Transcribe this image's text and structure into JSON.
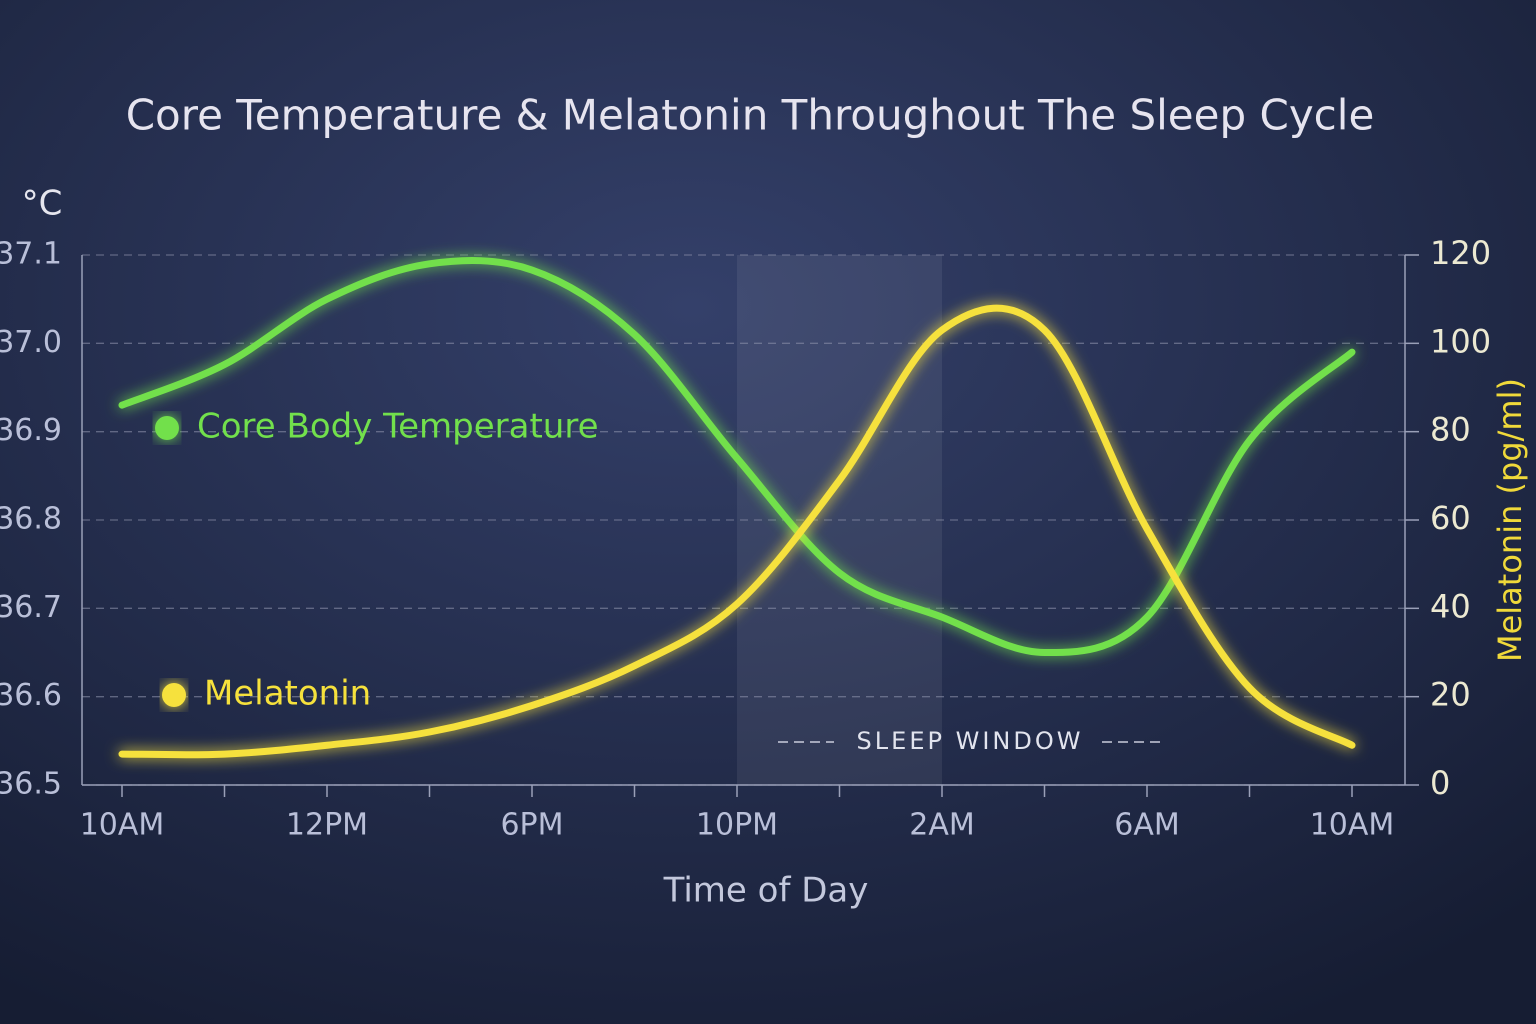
{
  "chart_data": {
    "type": "line",
    "title": "Core Temperature & Melatonin Throughout The Sleep Cycle",
    "x_label": "Time of Day",
    "y_label": "°C",
    "y2_label": "Melatonin (pg/ml)",
    "categories": [
      "10AM",
      null,
      "12PM",
      null,
      "6PM",
      null,
      "10PM",
      null,
      "2AM",
      null,
      "6AM",
      null,
      "10AM"
    ],
    "ylim": [
      36.5,
      37.1
    ],
    "yticks": [
      36.5,
      36.6,
      36.7,
      36.8,
      36.9,
      {
        "value": 37,
        "label": "37.0"
      },
      37.1
    ],
    "y2lim": [
      0,
      120
    ],
    "y2ticks": [
      0,
      20,
      40,
      60,
      80,
      100,
      120
    ],
    "grid": true,
    "series": [
      {
        "name": "Core Body Temperature",
        "color": "#72e04c",
        "values": [
          36.93,
          36.976,
          37.05,
          37.09,
          37.083,
          37.01,
          36.87,
          36.74,
          36.69,
          36.65,
          36.69,
          36.89,
          36.99
        ]
      },
      {
        "name": "Melatonin",
        "color": "#f6e13c",
        "axis": "y2",
        "values": [
          7,
          7,
          9,
          12,
          18,
          27,
          41,
          69,
          103,
          103,
          58,
          22,
          9
        ]
      }
    ],
    "sleep_window": {
      "label": "SLEEP WINDOW",
      "from": "10PM",
      "to": "2AM"
    }
  }
}
